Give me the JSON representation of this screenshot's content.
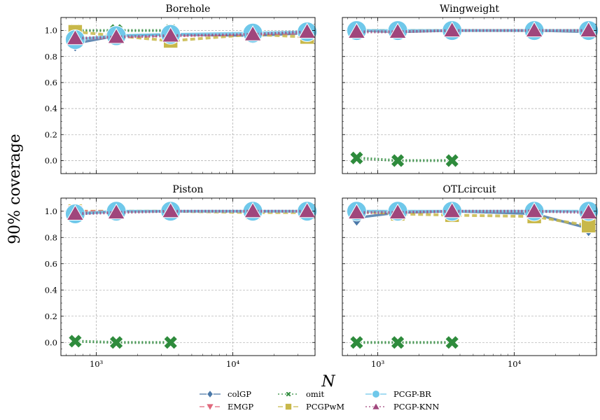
{
  "figure": {
    "ylabel": "90% coverage",
    "xlabel": "N"
  },
  "legend": {
    "placement": "bottom-center",
    "entries": [
      "colGP",
      "EMGP",
      "omit",
      "PCGPwM",
      "PCGP-BR",
      "PCGP-KNN"
    ]
  },
  "chart_data": [
    {
      "type": "line",
      "title": "Borehole",
      "xscale": "log",
      "xlim": [
        550,
        40000
      ],
      "ylim": [
        -0.1,
        1.1
      ],
      "xticks": [
        1000,
        10000
      ],
      "xticklabels": [
        "10³",
        "10⁴"
      ],
      "yticks": [
        0.0,
        0.2,
        0.4,
        0.6,
        0.8,
        1.0
      ],
      "yticklabels": [
        "0.0",
        "0.2",
        "0.4",
        "0.6",
        "0.8",
        "1.0"
      ],
      "grid": true,
      "x": [
        700,
        1400,
        3500,
        14000,
        35000
      ],
      "series": [
        {
          "name": "colGP",
          "values": [
            0.9,
            0.96,
            0.97,
            0.96,
            0.98
          ]
        },
        {
          "name": "EMGP",
          "values": [
            0.93,
            0.95,
            0.96,
            0.97,
            0.98
          ]
        },
        {
          "name": "omit",
          "values": [
            1.0,
            1.0,
            1.0,
            null,
            null
          ]
        },
        {
          "name": "PCGPwM",
          "values": [
            0.99,
            0.96,
            0.92,
            0.97,
            0.95
          ]
        },
        {
          "name": "PCGP-BR",
          "values": [
            0.93,
            0.96,
            0.97,
            0.98,
            0.99
          ]
        },
        {
          "name": "PCGP-KNN",
          "values": [
            0.94,
            0.95,
            0.96,
            0.97,
            0.99
          ]
        }
      ]
    },
    {
      "type": "line",
      "title": "Wingweight",
      "xscale": "log",
      "xlim": [
        550,
        40000
      ],
      "ylim": [
        -0.1,
        1.1
      ],
      "xticks": [
        1000,
        10000
      ],
      "xticklabels": [
        "10³",
        "10⁴"
      ],
      "yticks": [
        0.0,
        0.2,
        0.4,
        0.6,
        0.8,
        1.0
      ],
      "yticklabels": [
        "0.0",
        "0.2",
        "0.4",
        "0.6",
        "0.8",
        "1.0"
      ],
      "grid": true,
      "x": [
        700,
        1400,
        3500,
        14000,
        35000
      ],
      "series": [
        {
          "name": "colGP",
          "values": [
            1.0,
            0.99,
            1.0,
            1.0,
            0.99
          ]
        },
        {
          "name": "EMGP",
          "values": [
            1.0,
            1.0,
            1.0,
            1.0,
            1.0
          ]
        },
        {
          "name": "omit",
          "values": [
            0.02,
            0.0,
            0.0,
            null,
            null
          ]
        },
        {
          "name": "PCGPwM",
          "values": [
            1.0,
            1.0,
            1.0,
            1.0,
            1.0
          ]
        },
        {
          "name": "PCGP-BR",
          "values": [
            1.0,
            1.0,
            1.0,
            1.0,
            1.0
          ]
        },
        {
          "name": "PCGP-KNN",
          "values": [
            0.99,
            0.99,
            1.0,
            1.0,
            1.0
          ]
        }
      ]
    },
    {
      "type": "line",
      "title": "Piston",
      "xscale": "log",
      "xlim": [
        550,
        40000
      ],
      "ylim": [
        -0.1,
        1.1
      ],
      "xticks": [
        1000,
        10000
      ],
      "xticklabels": [
        "10³",
        "10⁴"
      ],
      "yticks": [
        0.0,
        0.2,
        0.4,
        0.6,
        0.8,
        1.0
      ],
      "yticklabels": [
        "0.0",
        "0.2",
        "0.4",
        "0.6",
        "0.8",
        "1.0"
      ],
      "grid": true,
      "x": [
        700,
        1400,
        3500,
        14000,
        35000
      ],
      "series": [
        {
          "name": "colGP",
          "values": [
            0.98,
            1.0,
            1.0,
            1.0,
            1.0
          ]
        },
        {
          "name": "EMGP",
          "values": [
            1.0,
            1.0,
            1.0,
            1.0,
            1.0
          ]
        },
        {
          "name": "omit",
          "values": [
            0.01,
            0.0,
            0.0,
            null,
            null
          ]
        },
        {
          "name": "PCGPwM",
          "values": [
            1.0,
            1.0,
            1.0,
            0.99,
            0.99
          ]
        },
        {
          "name": "PCGP-BR",
          "values": [
            0.98,
            1.0,
            1.0,
            1.0,
            1.0
          ]
        },
        {
          "name": "PCGP-KNN",
          "values": [
            0.98,
            0.99,
            1.0,
            1.0,
            1.0
          ]
        }
      ]
    },
    {
      "type": "line",
      "title": "OTLcircuit",
      "xscale": "log",
      "xlim": [
        550,
        40000
      ],
      "ylim": [
        -0.1,
        1.1
      ],
      "xticks": [
        1000,
        10000
      ],
      "xticklabels": [
        "10³",
        "10⁴"
      ],
      "yticks": [
        0.0,
        0.2,
        0.4,
        0.6,
        0.8,
        1.0
      ],
      "yticklabels": [
        "0.0",
        "0.2",
        "0.4",
        "0.6",
        "0.8",
        "1.0"
      ],
      "grid": true,
      "x": [
        700,
        1400,
        3500,
        14000,
        35000
      ],
      "series": [
        {
          "name": "colGP",
          "values": [
            0.95,
            0.99,
            1.0,
            0.98,
            0.87
          ]
        },
        {
          "name": "EMGP",
          "values": [
            1.0,
            1.0,
            1.0,
            1.0,
            1.0
          ]
        },
        {
          "name": "omit",
          "values": [
            0.0,
            0.0,
            0.0,
            null,
            null
          ]
        },
        {
          "name": "PCGPwM",
          "values": [
            1.0,
            0.98,
            0.97,
            0.96,
            0.89
          ]
        },
        {
          "name": "PCGP-BR",
          "values": [
            1.0,
            1.0,
            1.0,
            1.0,
            1.0
          ]
        },
        {
          "name": "PCGP-KNN",
          "values": [
            0.99,
            0.99,
            1.0,
            1.0,
            0.99
          ]
        }
      ]
    }
  ],
  "styles": {
    "colGP": {
      "color": "#4a78a8",
      "marker": "diamond",
      "dash": "solid"
    },
    "EMGP": {
      "color": "#e0687c",
      "marker": "triangle-down",
      "dash": "dashed"
    },
    "omit": {
      "color": "#2e8b3c",
      "marker": "x",
      "dash": "dotted"
    },
    "PCGPwM": {
      "color": "#c8b84a",
      "marker": "square",
      "dash": "dashed"
    },
    "PCGP-BR": {
      "color": "#6fc8ea",
      "marker": "circle",
      "dash": "solid"
    },
    "PCGP-KNN": {
      "color": "#a0467c",
      "marker": "triangle-up",
      "dash": "dotted"
    }
  }
}
